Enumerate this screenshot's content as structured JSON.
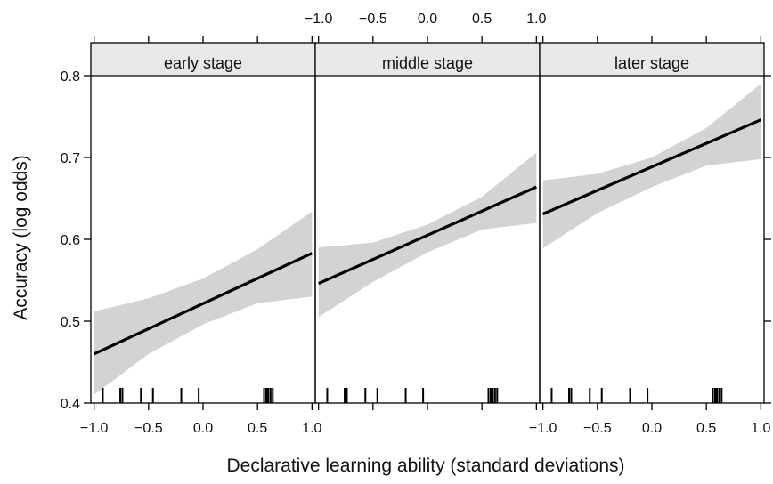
{
  "chart_data": {
    "type": "line",
    "xlabel": "Declarative learning ability (standard deviations)",
    "ylabel": "Accuracy (log odds)",
    "xlim": [
      -1.03,
      1.03
    ],
    "ylim": [
      0.4,
      0.8
    ],
    "x_ticks": [
      "−1.0",
      "−0.5",
      "0.0",
      "0.5",
      "1.0"
    ],
    "y_ticks": [
      "0.4",
      "0.5",
      "0.6",
      "0.7",
      "0.8"
    ],
    "panels": [
      {
        "label": "early stage",
        "x": [
          -1.0,
          1.0
        ],
        "y": [
          0.46,
          0.583
        ],
        "band_x": [
          -1.0,
          -0.5,
          0.0,
          0.5,
          1.0
        ],
        "band_upper": [
          0.512,
          0.528,
          0.552,
          0.588,
          0.634
        ],
        "band_lower": [
          0.41,
          0.46,
          0.496,
          0.522,
          0.53
        ],
        "rug": [
          -0.92,
          -0.76,
          -0.74,
          -0.57,
          -0.46,
          -0.2,
          -0.04,
          0.56,
          0.58,
          0.59,
          0.6,
          0.62,
          0.64
        ]
      },
      {
        "label": "middle stage",
        "x": [
          -1.0,
          1.0
        ],
        "y": [
          0.546,
          0.664
        ],
        "band_x": [
          -1.0,
          -0.5,
          0.0,
          0.5,
          1.0
        ],
        "band_upper": [
          0.59,
          0.596,
          0.618,
          0.652,
          0.706
        ],
        "band_lower": [
          0.505,
          0.548,
          0.584,
          0.612,
          0.62
        ],
        "rug": [
          -0.92,
          -0.76,
          -0.74,
          -0.57,
          -0.46,
          -0.2,
          -0.04,
          0.56,
          0.58,
          0.59,
          0.6,
          0.62,
          0.64
        ]
      },
      {
        "label": "later stage",
        "x": [
          -1.0,
          1.0
        ],
        "y": [
          0.631,
          0.746
        ],
        "band_x": [
          -1.0,
          -0.5,
          0.0,
          0.5,
          1.0
        ],
        "band_upper": [
          0.672,
          0.68,
          0.7,
          0.736,
          0.79
        ],
        "band_lower": [
          0.589,
          0.632,
          0.664,
          0.69,
          0.698
        ],
        "rug": [
          -0.92,
          -0.76,
          -0.74,
          -0.57,
          -0.46,
          -0.2,
          -0.04,
          0.56,
          0.58,
          0.59,
          0.6,
          0.62,
          0.64
        ]
      }
    ],
    "colors": {
      "line": "#000000",
      "band": "#d3d3d3",
      "strip": "#e8e8e8"
    }
  }
}
